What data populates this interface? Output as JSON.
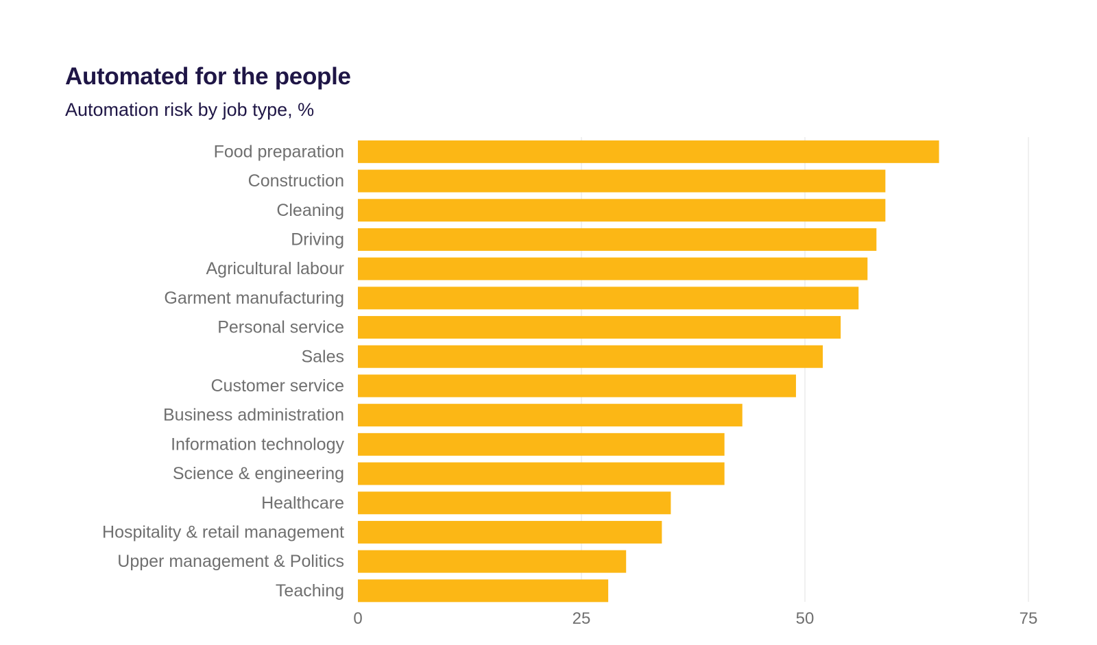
{
  "chart_data": {
    "type": "bar",
    "orientation": "horizontal",
    "title": "Automated for the people",
    "subtitle": "Automation risk by job type, %",
    "xlabel": "",
    "ylabel": "",
    "categories": [
      "Food preparation",
      "Construction",
      "Cleaning",
      "Driving",
      "Agricultural labour",
      "Garment manufacturing",
      "Personal service",
      "Sales",
      "Customer service",
      "Business administration",
      "Information technology",
      "Science & engineering",
      "Healthcare",
      "Hospitality & retail management",
      "Upper management & Politics",
      "Teaching"
    ],
    "values": [
      65,
      59,
      59,
      58,
      57,
      56,
      54,
      52,
      49,
      43,
      41,
      41,
      35,
      34,
      30,
      28
    ],
    "xlim": [
      0,
      75
    ],
    "xticks": [
      "0",
      "25",
      "50",
      "75"
    ],
    "grid": true,
    "colors": {
      "bar": "#fcb715",
      "grid": "#ececec",
      "title": "#1f1646",
      "label": "#6f6f6f"
    }
  }
}
